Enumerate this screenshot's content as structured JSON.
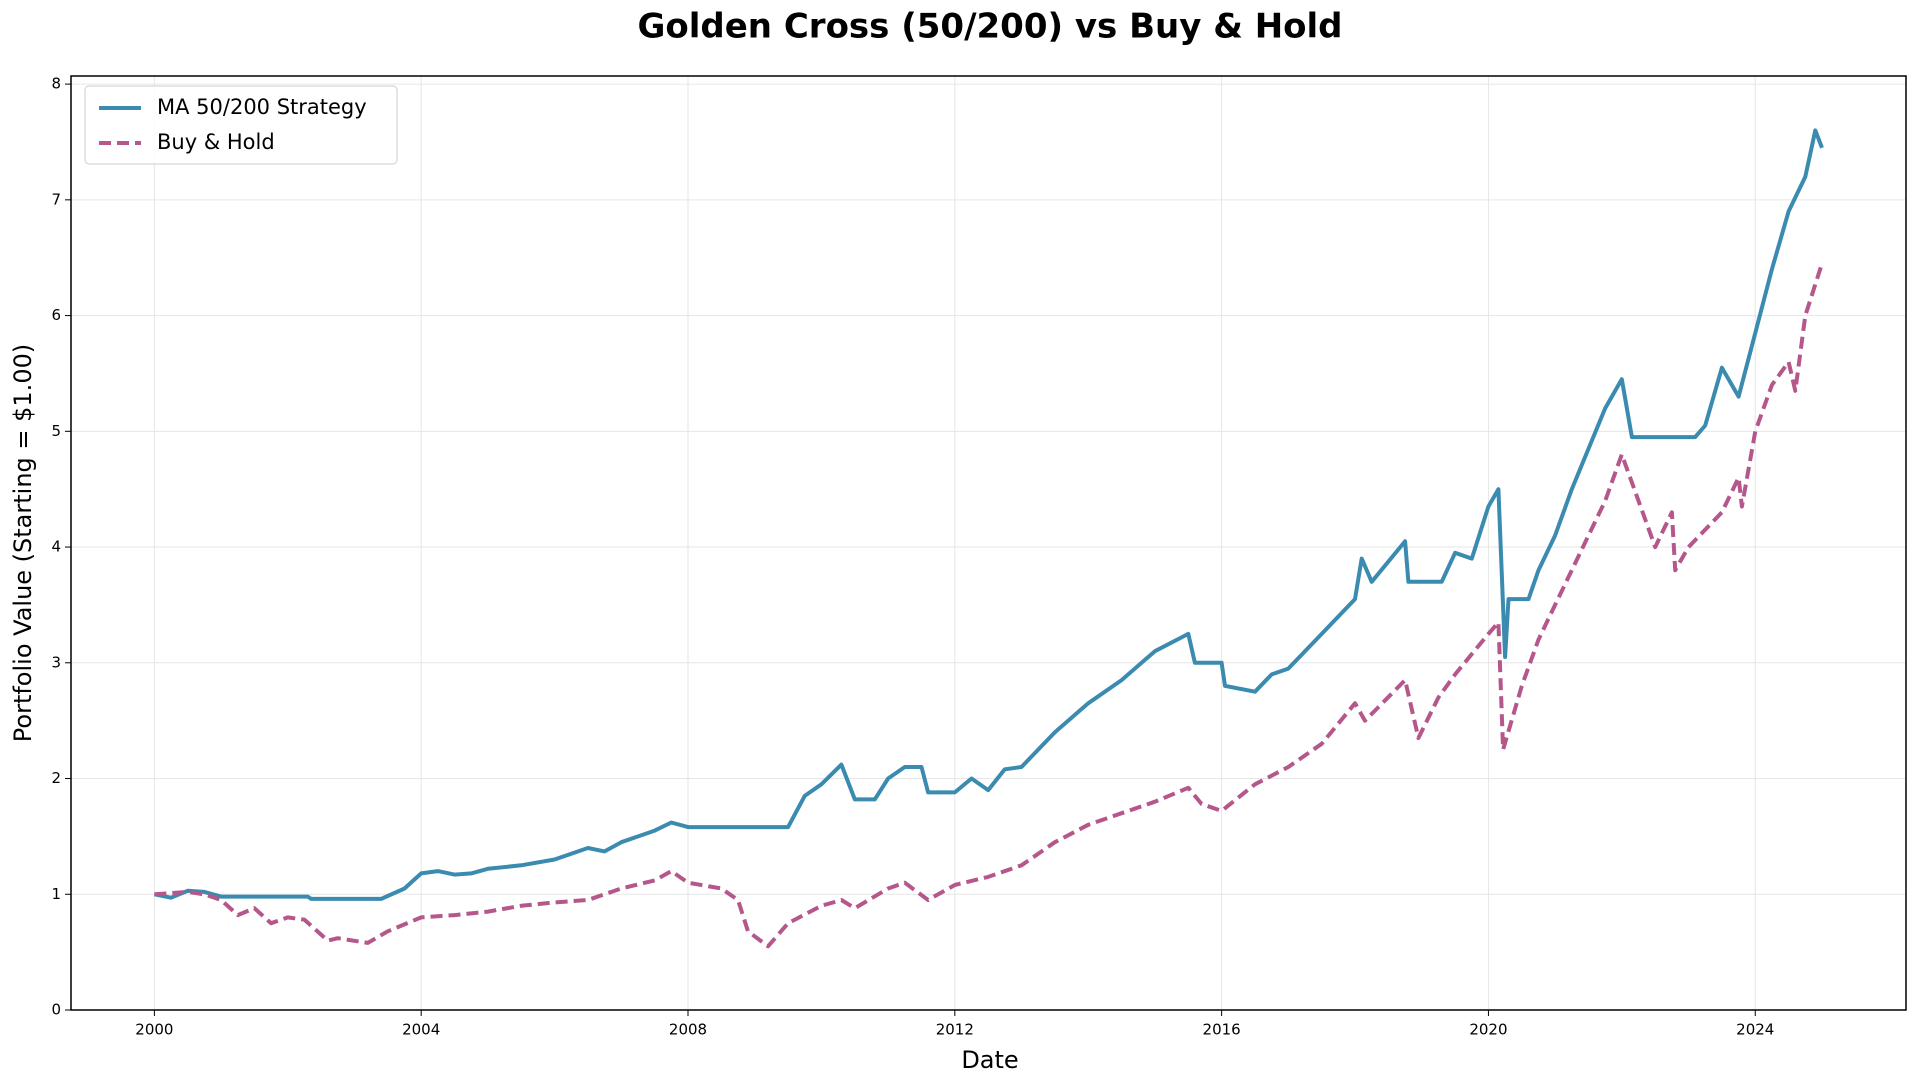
{
  "chart_data": {
    "type": "line",
    "title": "Golden Cross (50/200) vs Buy & Hold",
    "x_label": "Date",
    "y_label": "Portfolio Value (Starting = $1.00)",
    "xlim": [
      1998.75,
      2026.26
    ],
    "ylim": [
      0,
      8.07
    ],
    "xticks": [
      2000,
      2004,
      2008,
      2012,
      2016,
      2020,
      2024
    ],
    "yticks": [
      0,
      1,
      2,
      3,
      4,
      5,
      6,
      7,
      8
    ],
    "grid": true,
    "legend": "upper left",
    "series": [
      {
        "name": "MA 50/200 Strategy",
        "color": "#3b8bb1",
        "dash": false,
        "x": [
          2000.0,
          2000.25,
          2000.5,
          2000.75,
          2001.0,
          2002.3,
          2002.35,
          2003.4,
          2003.75,
          2004.0,
          2004.25,
          2004.5,
          2004.75,
          2005.0,
          2005.5,
          2006.0,
          2006.5,
          2006.75,
          2007.0,
          2007.5,
          2007.75,
          2008.0,
          2009.5,
          2009.75,
          2010.0,
          2010.3,
          2010.5,
          2010.8,
          2011.0,
          2011.25,
          2011.5,
          2011.6,
          2012.0,
          2012.25,
          2012.5,
          2012.75,
          2013.0,
          2013.5,
          2014.0,
          2014.5,
          2015.0,
          2015.5,
          2015.6,
          2016.0,
          2016.05,
          2016.5,
          2016.75,
          2017.0,
          2017.5,
          2018.0,
          2018.1,
          2018.25,
          2018.75,
          2018.8,
          2019.3,
          2019.5,
          2019.75,
          2020.0,
          2020.15,
          2020.25,
          2020.3,
          2020.6,
          2020.75,
          2021.0,
          2021.25,
          2021.5,
          2021.75,
          2022.0,
          2022.15,
          2023.1,
          2023.25,
          2023.5,
          2023.75,
          2024.0,
          2024.25,
          2024.5,
          2024.75,
          2024.9,
          2025.0
        ],
        "values": [
          1.0,
          0.97,
          1.03,
          1.02,
          0.98,
          0.98,
          0.96,
          0.96,
          1.05,
          1.18,
          1.2,
          1.17,
          1.18,
          1.22,
          1.25,
          1.3,
          1.4,
          1.37,
          1.45,
          1.55,
          1.62,
          1.58,
          1.58,
          1.85,
          1.95,
          2.12,
          1.82,
          1.82,
          2.0,
          2.1,
          2.1,
          1.88,
          1.88,
          2.0,
          1.9,
          2.08,
          2.1,
          2.4,
          2.65,
          2.85,
          3.1,
          3.25,
          3.0,
          3.0,
          2.8,
          2.75,
          2.9,
          2.95,
          3.25,
          3.55,
          3.9,
          3.7,
          4.05,
          3.7,
          3.7,
          3.95,
          3.9,
          4.35,
          4.5,
          3.05,
          3.55,
          3.55,
          3.8,
          4.1,
          4.5,
          4.85,
          5.2,
          5.45,
          4.95,
          4.95,
          5.05,
          5.55,
          5.3,
          5.85,
          6.4,
          6.9,
          7.2,
          7.6,
          7.45
        ]
      },
      {
        "name": "Buy & Hold",
        "color": "#b5578a",
        "dash": true,
        "x": [
          2000.0,
          2000.5,
          2000.75,
          2001.0,
          2001.25,
          2001.5,
          2001.75,
          2002.0,
          2002.25,
          2002.6,
          2002.75,
          2003.2,
          2003.5,
          2004.0,
          2004.5,
          2005.0,
          2005.5,
          2006.0,
          2006.5,
          2007.0,
          2007.5,
          2007.75,
          2008.0,
          2008.5,
          2008.75,
          2008.9,
          2009.2,
          2009.5,
          2010.0,
          2010.3,
          2010.5,
          2011.0,
          2011.25,
          2011.6,
          2012.0,
          2012.5,
          2013.0,
          2013.5,
          2014.0,
          2014.5,
          2015.0,
          2015.5,
          2015.7,
          2016.0,
          2016.5,
          2017.0,
          2017.5,
          2018.0,
          2018.15,
          2018.75,
          2018.95,
          2019.25,
          2019.5,
          2020.0,
          2020.15,
          2020.22,
          2020.5,
          2020.75,
          2021.0,
          2021.5,
          2021.75,
          2022.0,
          2022.25,
          2022.5,
          2022.75,
          2022.8,
          2023.0,
          2023.5,
          2023.75,
          2023.8,
          2024.0,
          2024.25,
          2024.5,
          2024.6,
          2024.75,
          2025.0
        ],
        "values": [
          1.0,
          1.02,
          1.0,
          0.95,
          0.82,
          0.88,
          0.75,
          0.8,
          0.78,
          0.6,
          0.62,
          0.58,
          0.68,
          0.8,
          0.82,
          0.85,
          0.9,
          0.93,
          0.95,
          1.05,
          1.12,
          1.2,
          1.1,
          1.05,
          0.95,
          0.68,
          0.55,
          0.75,
          0.9,
          0.95,
          0.88,
          1.05,
          1.1,
          0.95,
          1.08,
          1.15,
          1.25,
          1.45,
          1.6,
          1.7,
          1.8,
          1.92,
          1.78,
          1.72,
          1.95,
          2.1,
          2.3,
          2.65,
          2.5,
          2.85,
          2.35,
          2.7,
          2.9,
          3.25,
          3.35,
          2.25,
          2.8,
          3.2,
          3.5,
          4.1,
          4.4,
          4.8,
          4.4,
          4.0,
          4.3,
          3.8,
          4.0,
          4.3,
          4.6,
          4.35,
          5.0,
          5.4,
          5.6,
          5.35,
          6.0,
          6.45
        ]
      }
    ]
  }
}
